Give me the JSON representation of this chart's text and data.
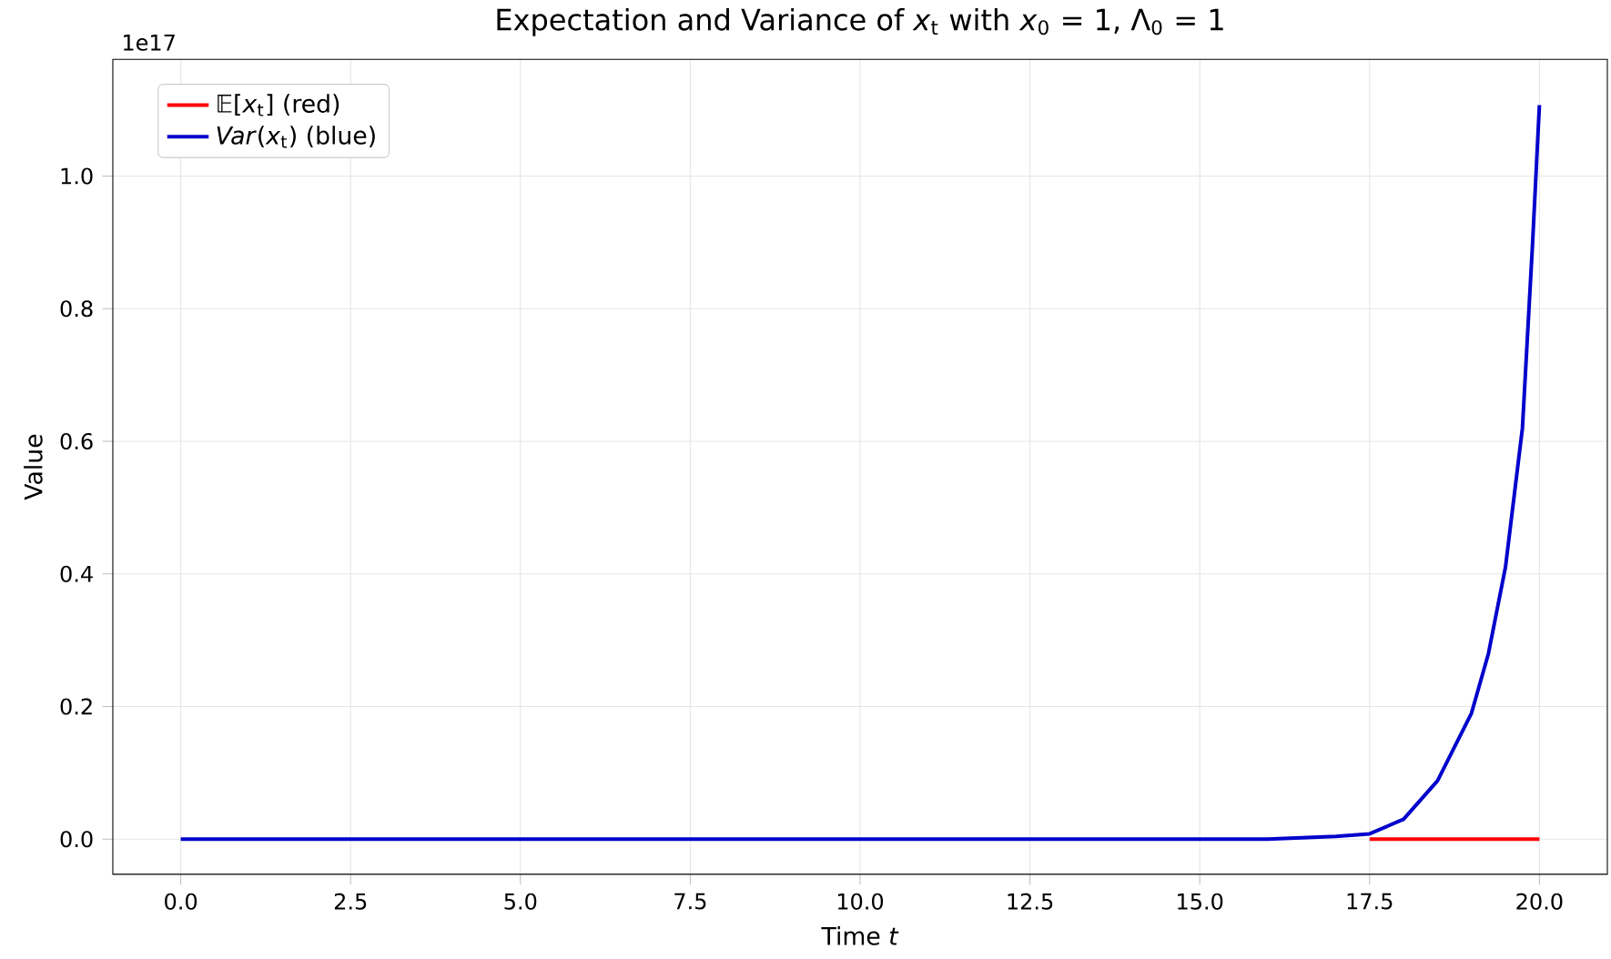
{
  "chart_data": {
    "type": "line",
    "title": "Expectation and Variance of *x*$_{t}$ with *x*$_{0}$ = 1, Λ$_{0}$ = 1",
    "xlabel": "Time *t*",
    "ylabel": "Value",
    "annotations": [
      "1e17"
    ],
    "xlim": [
      -1,
      21
    ],
    "ylim": [
      -0.053,
      1.176
    ],
    "xticks": [
      {
        "value": 0,
        "label": "0.0"
      },
      2.5,
      {
        "value": 5,
        "label": "5.0"
      },
      7.5,
      {
        "value": 10,
        "label": "10.0"
      },
      12.5,
      {
        "value": 15,
        "label": "15.0"
      },
      17.5,
      {
        "value": 20,
        "label": "20.0"
      }
    ],
    "yticks": [
      {
        "value": 0,
        "label": "0.0"
      },
      0.2,
      0.4,
      0.6,
      0.8,
      {
        "value": 1,
        "label": "1.0"
      }
    ],
    "grid": true,
    "legend": "top left",
    "line_style": "solid",
    "marker": "none",
    "series": [
      {
        "name": "𝔼[*x*$_{t}$] (red)",
        "color": "#ff0000",
        "x": [
          17.5,
          20
        ],
        "values": [
          0,
          0
        ]
      },
      {
        "name": "*Var*(*x*$_{t}$) (blue)",
        "color": "#0000cc",
        "x": [
          0,
          5,
          10,
          15,
          16,
          17,
          17.5,
          18,
          18.5,
          19,
          19.25,
          19.5,
          19.75,
          19.9,
          20
        ],
        "values": [
          0,
          0,
          0,
          0,
          0,
          0.004,
          0.008,
          0.03,
          0.088,
          0.19,
          0.28,
          0.41,
          0.62,
          0.9,
          1.107
        ]
      }
    ]
  }
}
